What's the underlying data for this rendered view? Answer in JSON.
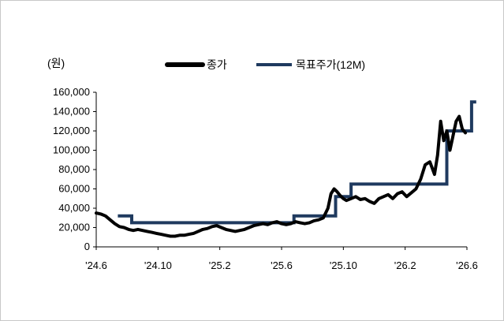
{
  "chart_data": {
    "type": "line",
    "unit_label": "(원)",
    "colors": {
      "close": "#000000",
      "target": "#1f3a5f"
    },
    "y_ticks": [
      "160,000",
      "140,000",
      "120,000",
      "100,000",
      "80,000",
      "60,000",
      "40,000",
      "20,000",
      "0"
    ],
    "y_tick_values": [
      160000,
      140000,
      120000,
      100000,
      80000,
      60000,
      40000,
      20000,
      0
    ],
    "ylim": [
      0,
      160000
    ],
    "x_ticks": [
      "'24.6",
      "'24.10",
      "'25.2",
      "'25.6",
      "'25.10",
      "'26.2",
      "'26.6"
    ],
    "x_tick_values": [
      0,
      4,
      8,
      12,
      16,
      20,
      24
    ],
    "xlim": [
      0,
      24
    ],
    "series": [
      {
        "name": "종가",
        "x": [
          0,
          0.3,
          0.6,
          0.9,
          1.2,
          1.5,
          1.8,
          2.1,
          2.4,
          2.7,
          3,
          3.3,
          3.6,
          3.9,
          4.2,
          4.5,
          4.8,
          5.1,
          5.4,
          5.7,
          6,
          6.3,
          6.6,
          6.9,
          7.2,
          7.5,
          7.8,
          8.1,
          8.4,
          8.7,
          9,
          9.3,
          9.6,
          9.9,
          10.2,
          10.5,
          10.8,
          11.1,
          11.4,
          11.7,
          12,
          12.3,
          12.6,
          12.9,
          13.2,
          13.5,
          13.8,
          14.1,
          14.4,
          14.7,
          15,
          15.2,
          15.4,
          15.6,
          15.8,
          16,
          16.2,
          16.5,
          16.8,
          17.1,
          17.4,
          17.7,
          18,
          18.3,
          18.6,
          18.9,
          19.2,
          19.5,
          19.8,
          20.1,
          20.4,
          20.7,
          21,
          21.3,
          21.6,
          21.9,
          22.1,
          22.3,
          22.5,
          22.7,
          22.9,
          23.1,
          23.3,
          23.5,
          23.7,
          23.9
        ],
        "values": [
          35000,
          34000,
          32000,
          28000,
          24000,
          21000,
          20000,
          18000,
          17000,
          18000,
          17000,
          16000,
          15000,
          14000,
          13000,
          12000,
          11000,
          11000,
          12000,
          12000,
          13000,
          14000,
          16000,
          18000,
          19000,
          21000,
          22000,
          20000,
          18000,
          17000,
          16000,
          17000,
          18000,
          20000,
          22000,
          23000,
          24000,
          23000,
          25000,
          26000,
          24000,
          23000,
          24000,
          26000,
          25000,
          24000,
          25000,
          27000,
          28000,
          30000,
          40000,
          55000,
          60000,
          57000,
          53000,
          50000,
          48000,
          50000,
          52000,
          49000,
          50000,
          47000,
          45000,
          50000,
          52000,
          54000,
          50000,
          55000,
          57000,
          52000,
          56000,
          60000,
          70000,
          85000,
          88000,
          75000,
          95000,
          130000,
          110000,
          120000,
          100000,
          115000,
          130000,
          135000,
          122000,
          118000
        ]
      },
      {
        "name": "목표주가(12M)",
        "x": [
          1.4,
          2.3,
          2.3,
          9.8,
          9.8,
          12.8,
          12.8,
          13.8,
          13.8,
          15.5,
          15.5,
          16.5,
          16.5,
          18.8,
          18.8,
          22.7,
          22.7,
          22.9,
          22.9,
          24.3,
          24.3,
          24.6
        ],
        "values": [
          32000,
          32000,
          25000,
          25000,
          25000,
          25000,
          32000,
          32000,
          32000,
          32000,
          52000,
          52000,
          65000,
          65000,
          65000,
          65000,
          120000,
          120000,
          120000,
          120000,
          150000,
          150000
        ]
      }
    ],
    "legend_position": "top"
  }
}
